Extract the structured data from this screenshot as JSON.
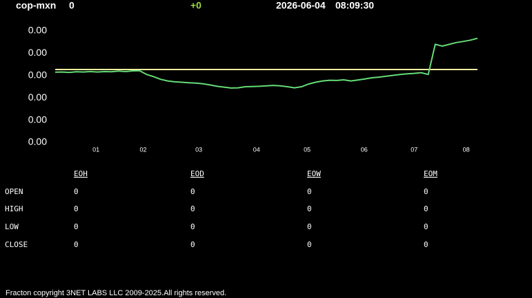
{
  "header": {
    "symbol": "cop-mxn",
    "price": "0",
    "change": "+0",
    "date": "2026-06-04",
    "time": "08:09:30"
  },
  "chart_data": {
    "type": "line",
    "x": [
      0,
      1,
      2,
      3,
      4,
      5,
      6,
      7,
      8,
      9,
      10,
      11,
      12,
      13,
      14,
      15,
      16,
      17,
      18,
      19,
      20,
      21,
      22,
      23,
      24,
      25,
      26,
      27,
      28,
      29,
      30,
      31,
      32,
      33,
      34,
      35,
      36,
      37,
      38,
      39,
      40,
      41,
      42,
      43,
      44,
      45,
      46,
      47,
      48,
      49,
      50,
      51,
      52,
      53,
      54,
      55,
      56,
      57,
      58,
      59,
      60
    ],
    "series": [
      {
        "color": "#66dd77",
        "values": [
          0.00315,
          0.00316,
          0.00314,
          0.00317,
          0.00316,
          0.00318,
          0.00316,
          0.00318,
          0.00317,
          0.0032,
          0.00318,
          0.00321,
          0.00322,
          0.00305,
          0.00295,
          0.00283,
          0.00276,
          0.00272,
          0.0027,
          0.00268,
          0.00266,
          0.00263,
          0.00258,
          0.00252,
          0.00248,
          0.00244,
          0.00245,
          0.0025,
          0.00251,
          0.00252,
          0.00254,
          0.00256,
          0.00254,
          0.0025,
          0.00245,
          0.0025,
          0.00262,
          0.0027,
          0.00276,
          0.00279,
          0.00278,
          0.00281,
          0.00276,
          0.0028,
          0.00285,
          0.0029,
          0.00293,
          0.00297,
          0.00301,
          0.00305,
          0.00308,
          0.0031,
          0.00313,
          0.00305,
          0.0044,
          0.00432,
          0.0044,
          0.00448,
          0.00453,
          0.00459,
          0.00467
        ]
      }
    ],
    "reference": 0.00327,
    "reference_color": "#f0f0a0",
    "xlim": [
      0,
      60
    ],
    "xticks": [
      {
        "value": 5.8,
        "label": "01"
      },
      {
        "value": 12.5,
        "label": "02"
      },
      {
        "value": 20.4,
        "label": "03"
      },
      {
        "value": 28.6,
        "label": "04"
      },
      {
        "value": 35.8,
        "label": "05"
      },
      {
        "value": 43.9,
        "label": "06"
      },
      {
        "value": 51.0,
        "label": "07"
      },
      {
        "value": 58.4,
        "label": "08"
      }
    ],
    "ylim": [
      0,
      0.005
    ],
    "yticks": [
      {
        "value": 0.005,
        "label": "0.00"
      },
      {
        "value": 0.004,
        "label": "0.00"
      },
      {
        "value": 0.003,
        "label": "0.00"
      },
      {
        "value": 0.002,
        "label": "0.00"
      },
      {
        "value": 0.001,
        "label": "0.00"
      },
      {
        "value": 0,
        "label": "0.00"
      }
    ],
    "grid": false
  },
  "table": {
    "columns": [
      "EOH",
      "EOD",
      "EOW",
      "EOM"
    ],
    "rows": [
      {
        "label": "OPEN",
        "values": [
          0,
          0,
          0,
          0
        ]
      },
      {
        "label": "HIGH",
        "values": [
          0,
          0,
          0,
          0
        ]
      },
      {
        "label": "LOW",
        "values": [
          0,
          0,
          0,
          0
        ]
      },
      {
        "label": "CLOSE",
        "values": [
          0,
          0,
          0,
          0
        ]
      }
    ]
  },
  "footer": "Fracton copyright 3NET LABS LLC 2009-2025.All rights reserved."
}
